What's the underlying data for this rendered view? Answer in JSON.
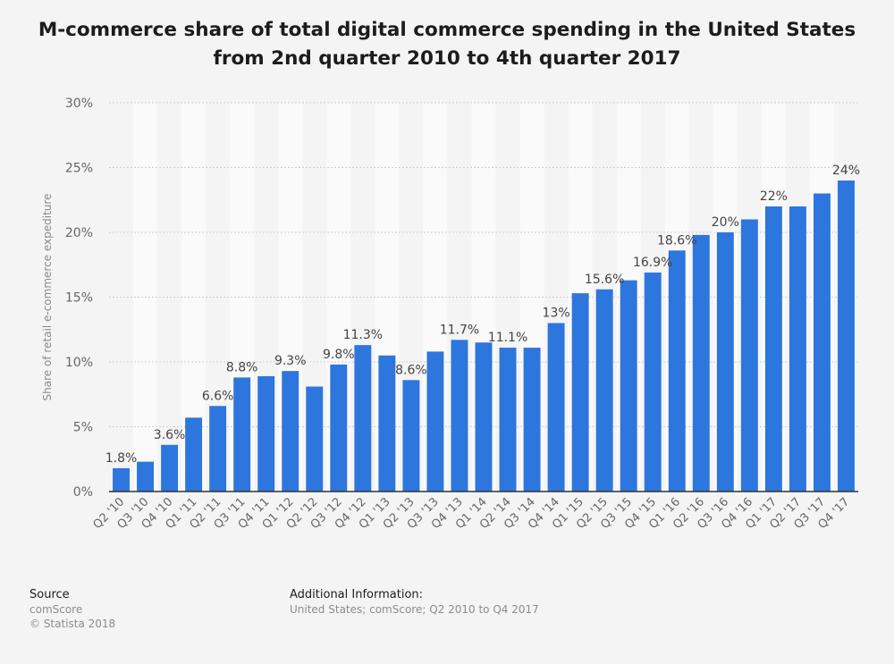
{
  "title": "M-commerce share of total digital commerce spending in the United States from 2nd quarter 2010 to 4th quarter 2017",
  "footer": {
    "source_label": "Source",
    "source_value": "comScore",
    "copyright": "© Statista 2018",
    "additional_label": "Additional Information:",
    "additional_value": "United States; comScore; Q2 2010 to Q4 2017"
  },
  "colors": {
    "bar": "#2d76dd",
    "background": "#f4f4f4",
    "band": "#fafafa",
    "grid": "#cfcfcf",
    "axis": "#333333"
  },
  "chart_data": {
    "type": "bar",
    "title": "M-commerce share of total digital commerce spending in the United States from 2nd quarter 2010 to 4th quarter 2017",
    "xlabel": "",
    "ylabel": "Share of retail e-commerce expediture",
    "ylim": [
      0,
      30
    ],
    "yticks": [
      "0%",
      "5%",
      "10%",
      "15%",
      "20%",
      "25%",
      "30%"
    ],
    "grid": true,
    "categories": [
      "Q2 '10",
      "Q3 '10",
      "Q4 '10",
      "Q1 '11",
      "Q2 '11",
      "Q3 '11",
      "Q4 '11",
      "Q1 '12",
      "Q2 '12",
      "Q3 '12",
      "Q4 '12",
      "Q1 '13",
      "Q2 '13",
      "Q3 '13",
      "Q4 '13",
      "Q1 '14",
      "Q2 '14",
      "Q3 '14",
      "Q4 '14",
      "Q1 '15",
      "Q2 '15",
      "Q3 '15",
      "Q4 '15",
      "Q1 '16",
      "Q2 '16",
      "Q3 '16",
      "Q4 '16",
      "Q1 '17",
      "Q2 '17",
      "Q3 '17",
      "Q4 '17"
    ],
    "values": [
      1.8,
      2.3,
      3.6,
      5.7,
      6.6,
      8.8,
      8.9,
      9.3,
      8.1,
      9.8,
      11.3,
      10.5,
      8.6,
      10.8,
      11.7,
      11.5,
      11.1,
      11.1,
      13,
      15.3,
      15.6,
      16.3,
      16.9,
      18.6,
      19.8,
      20,
      21,
      22,
      22,
      23,
      24
    ],
    "data_labels": [
      "1.8%",
      "",
      "3.6%",
      "",
      "6.6%",
      "8.8%",
      "",
      "9.3%",
      "",
      "9.8%",
      "11.3%",
      "",
      "8.6%",
      "",
      "11.7%",
      "",
      "11.1%",
      "",
      "13%",
      "",
      "15.6%",
      "",
      "16.9%",
      "18.6%",
      "",
      "20%",
      "",
      "22%",
      "",
      "",
      "24%"
    ]
  }
}
